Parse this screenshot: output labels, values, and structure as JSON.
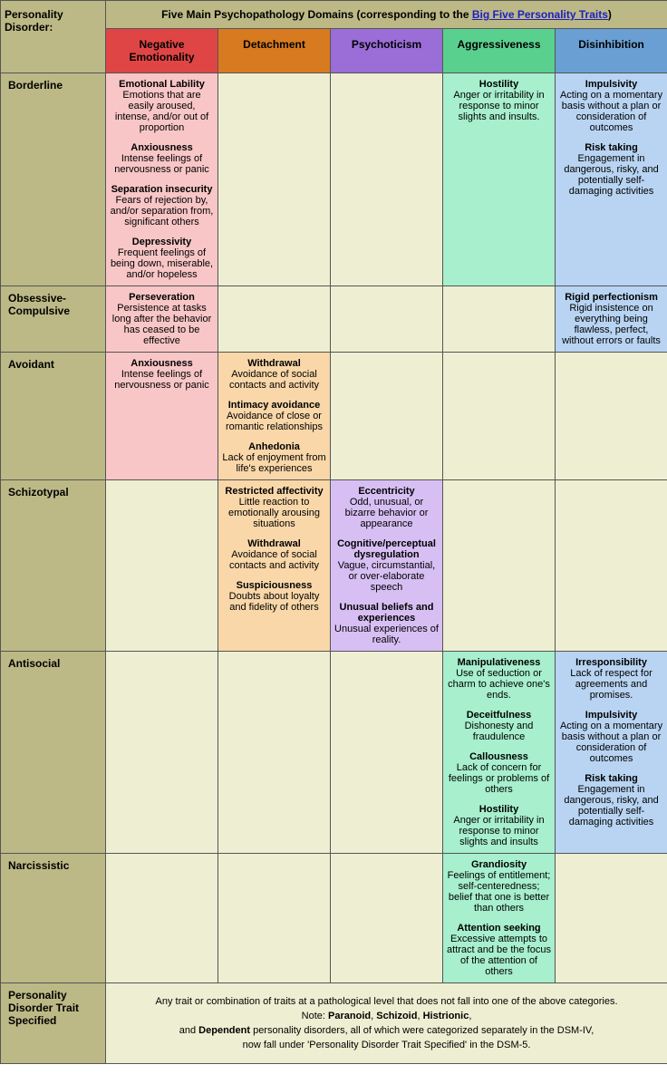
{
  "header": {
    "corner": "Personality Disorder:",
    "title_pre": "Five Main Psychopathology Domains (corresponding to the ",
    "title_link": "Big Five Personality Traits",
    "title_post": ")"
  },
  "columns": [
    {
      "label": "Negative Emotionality",
      "hdr_class": "c-red",
      "cell_class": "cell-red"
    },
    {
      "label": "Detachment",
      "hdr_class": "c-orange",
      "cell_class": "cell-orange"
    },
    {
      "label": "Psychoticism",
      "hdr_class": "c-purple",
      "cell_class": "cell-purple"
    },
    {
      "label": "Aggressiveness",
      "hdr_class": "c-green",
      "cell_class": "cell-green"
    },
    {
      "label": "Disinhibition",
      "hdr_class": "c-blue",
      "cell_class": "cell-blue"
    }
  ],
  "rows": [
    {
      "label": "Borderline",
      "cells": [
        [
          {
            "t": "Emotional Lability",
            "d": "Emotions that are easily aroused, intense, and/or out of proportion"
          },
          {
            "t": "Anxiousness",
            "d": "Intense feelings of nervousness or panic"
          },
          {
            "t": "Separation insecurity",
            "d": "Fears of rejection by, and/or separation from, significant others"
          },
          {
            "t": "Depressivity",
            "d": "Frequent feelings of being down, miserable, and/or hopeless"
          }
        ],
        null,
        null,
        [
          {
            "t": "Hostility",
            "d": "Anger or irritability in response to minor slights and insults."
          }
        ],
        [
          {
            "t": "Impulsivity",
            "d": "Acting on a momentary basis without a plan or consideration of outcomes"
          },
          {
            "t": "Risk taking",
            "d": "Engagement in dangerous, risky, and potentially self-damaging activities"
          }
        ]
      ]
    },
    {
      "label": "Obsessive-Compulsive",
      "cells": [
        [
          {
            "t": "Perseveration",
            "d": "Persistence at tasks long after the behavior has ceased to be effective"
          }
        ],
        null,
        null,
        null,
        [
          {
            "t": "Rigid perfectionism",
            "d": "Rigid insistence on everything being flawless, perfect, without errors or faults"
          }
        ]
      ]
    },
    {
      "label": "Avoidant",
      "cells": [
        [
          {
            "t": "Anxiousness",
            "d": "Intense feelings of nervousness or panic"
          }
        ],
        [
          {
            "t": "Withdrawal",
            "d": "Avoidance of social contacts and activity"
          },
          {
            "t": "Intimacy avoidance",
            "d": "Avoidance of close or romantic relationships"
          },
          {
            "t": "Anhedonia",
            "d": "Lack of enjoyment from life's experiences"
          }
        ],
        null,
        null,
        null
      ]
    },
    {
      "label": "Schizotypal",
      "cells": [
        null,
        [
          {
            "t": "Restricted affectivity",
            "d": "Little reaction to emotionally arousing situations"
          },
          {
            "t": "Withdrawal",
            "d": "Avoidance of social contacts and activity"
          },
          {
            "t": "Suspiciousness",
            "d": "Doubts about loyalty and fidelity of others"
          }
        ],
        [
          {
            "t": "Eccentricity",
            "d": "Odd, unusual, or bizarre behavior or appearance"
          },
          {
            "t": "Cognitive/perceptual dysregulation",
            "d": "Vague, circumstantial, or over-elaborate speech"
          },
          {
            "t": "Unusual beliefs and experiences",
            "d": "Unusual experiences of reality."
          }
        ],
        null,
        null
      ]
    },
    {
      "label": "Antisocial",
      "cells": [
        null,
        null,
        null,
        [
          {
            "t": "Manipulativeness",
            "d": "Use of seduction or charm to achieve one's ends."
          },
          {
            "t": "Deceitfulness",
            "d": "Dishonesty and fraudulence"
          },
          {
            "t": "Callousness",
            "d": "Lack of concern for feelings or problems of others"
          },
          {
            "t": "Hostility",
            "d": "Anger or irritability in response to minor slights and insults"
          }
        ],
        [
          {
            "t": "Irresponsibility",
            "d": "Lack of respect for agreements and promises."
          },
          {
            "t": "Impulsivity",
            "d": "Acting on a momentary basis without a plan or consideration of outcomes"
          },
          {
            "t": "Risk taking",
            "d": "Engagement in dangerous, risky, and potentially self-damaging activities"
          }
        ]
      ]
    },
    {
      "label": "Narcissistic",
      "cells": [
        null,
        null,
        null,
        [
          {
            "t": "Grandiosity",
            "d": "Feelings of entitlement; self-centeredness; belief that one is better than others"
          },
          {
            "t": "Attention seeking",
            "d": "Excessive attempts to attract and be the focus of the attention of others"
          }
        ],
        null
      ]
    }
  ],
  "footer": {
    "row_label": "Personality Disorder Trait Specified",
    "line1": "Any trait or combination of traits at a pathological level that does not fall into one of the above categories.",
    "note_pre": "Note: ",
    "bold1": "Paranoid",
    "sep": ", ",
    "bold2": "Schizoid",
    "bold3": "Histrionic",
    "line3_pre": "and ",
    "bold4": "Dependent",
    "line3_post": " personality disorders, all of which were categorized separately in the DSM-IV,",
    "line4": "now fall under 'Personality Disorder Trait Specified' in the DSM-5."
  },
  "col_widths": [
    "116px",
    "124px",
    "124px",
    "124px",
    "124px",
    "124px"
  ]
}
